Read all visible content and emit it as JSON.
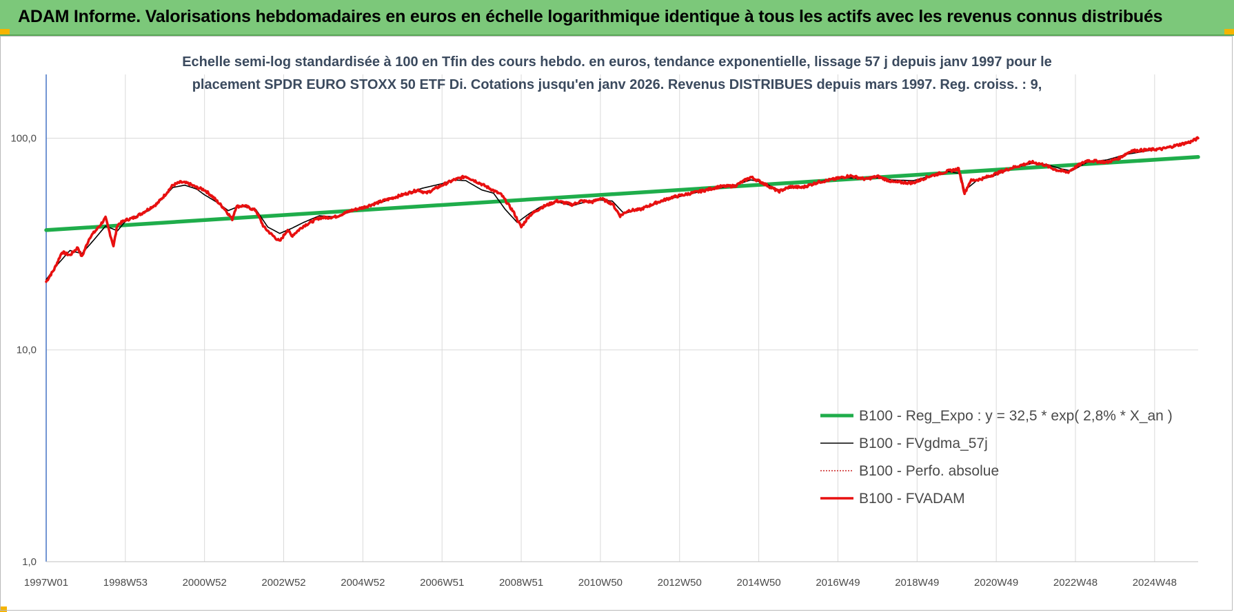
{
  "header": {
    "title": "ADAM Informe. Valorisations hebdomadaires en euros en échelle logarithmique identique à tous les actifs avec les revenus connus distribués"
  },
  "colors": {
    "header_bg": "#7cc87a",
    "accent_corner": "#f5b400",
    "reg_expo": "#1fad4b",
    "fvgdma": "#000000",
    "perfo": "#cc2222",
    "fvadam": "#e81010"
  },
  "chart_data": {
    "type": "line",
    "title_lines": [
      "Echelle semi-log standardisée à 100 en Tfin des cours hebdo. en euros, tendance exponentielle, lissage 57 j depuis janv 1997 pour le",
      "placement SPDR EURO STOXX 50 ETF Di. Cotations jusqu'en janv 2026. Revenus DISTRIBUES depuis mars 1997. Reg. croiss. : 9,"
    ],
    "y_scale": "log",
    "ylim": [
      1,
      200
    ],
    "y_ticks": [
      {
        "value": 1,
        "label": "1,0"
      },
      {
        "value": 10,
        "label": "10,0"
      },
      {
        "value": 100,
        "label": "100,0"
      }
    ],
    "xlim": [
      1997.0,
      2026.1
    ],
    "x_ticks": [
      {
        "value": 1997.0,
        "label": "1997W01"
      },
      {
        "value": 1999.0,
        "label": "1998W53"
      },
      {
        "value": 2001.0,
        "label": "2000W52"
      },
      {
        "value": 2003.0,
        "label": "2002W52"
      },
      {
        "value": 2005.0,
        "label": "2004W52"
      },
      {
        "value": 2007.0,
        "label": "2006W51"
      },
      {
        "value": 2009.0,
        "label": "2008W51"
      },
      {
        "value": 2011.0,
        "label": "2010W50"
      },
      {
        "value": 2013.0,
        "label": "2012W50"
      },
      {
        "value": 2015.0,
        "label": "2014W50"
      },
      {
        "value": 2017.0,
        "label": "2016W49"
      },
      {
        "value": 2019.0,
        "label": "2018W49"
      },
      {
        "value": 2021.0,
        "label": "2020W49"
      },
      {
        "value": 2023.0,
        "label": "2022W48"
      },
      {
        "value": 2025.0,
        "label": "2024W48"
      }
    ],
    "grid": true,
    "legend_position": "bottom-right",
    "series": [
      {
        "name": "B100 - Reg_Expo : y = 32,5 * exp( 2,8% *  X_an )",
        "color": "#1fad4b",
        "style": "solid-thick",
        "x": [
          1997.0,
          2026.1
        ],
        "values": [
          36.8,
          81.5
        ]
      },
      {
        "name": "B100 - FVgdma_57j",
        "color": "#000000",
        "style": "solid",
        "x": [
          1997.0,
          1997.3,
          1997.6,
          1997.9,
          1998.2,
          1998.5,
          1998.8,
          1999.0,
          1999.3,
          1999.6,
          1999.9,
          2000.2,
          2000.5,
          2000.8,
          2001.0,
          2001.3,
          2001.6,
          2001.9,
          2002.3,
          2002.6,
          2002.9,
          2003.2,
          2003.5,
          2003.9,
          2004.3,
          2004.7,
          2005.0,
          2005.5,
          2006.0,
          2006.5,
          2007.0,
          2007.3,
          2007.6,
          2008.0,
          2008.3,
          2008.6,
          2008.9,
          2009.2,
          2009.5,
          2009.9,
          2010.3,
          2010.7,
          2011.0,
          2011.3,
          2011.6,
          2012.0,
          2012.4,
          2012.8,
          2013.2,
          2013.6,
          2014.0,
          2014.4,
          2014.8,
          2015.1,
          2015.5,
          2015.9,
          2016.3,
          2016.7,
          2017.2,
          2017.6,
          2018.0,
          2018.4,
          2018.9,
          2019.3,
          2019.8,
          2020.1,
          2020.2,
          2020.5,
          2020.9,
          2021.4,
          2021.9,
          2022.3,
          2022.6,
          2022.9,
          2023.3,
          2023.8,
          2024.3,
          2024.8,
          2025.3,
          2025.8,
          2026.1
        ],
        "values": [
          21.5,
          25.5,
          29.5,
          28.5,
          33.0,
          38.5,
          36.5,
          40.5,
          43.0,
          45.5,
          51.0,
          58.5,
          60.0,
          57.5,
          54.0,
          50.0,
          45.5,
          48.0,
          46.0,
          38.0,
          35.5,
          37.5,
          40.0,
          43.0,
          42.5,
          45.0,
          47.0,
          50.0,
          54.0,
          58.0,
          61.0,
          63.5,
          63.0,
          57.0,
          55.0,
          46.0,
          40.0,
          44.0,
          47.5,
          50.0,
          48.0,
          50.5,
          51.0,
          50.5,
          44.0,
          46.5,
          49.0,
          52.0,
          54.0,
          56.5,
          58.0,
          60.0,
          63.5,
          62.0,
          57.0,
          58.5,
          60.0,
          63.5,
          65.0,
          64.5,
          65.0,
          63.5,
          63.0,
          66.0,
          69.5,
          68.0,
          56.5,
          63.0,
          66.0,
          72.0,
          76.0,
          75.0,
          72.0,
          70.0,
          77.0,
          79.0,
          84.0,
          87.0,
          90.0,
          95.0,
          99.5
        ]
      },
      {
        "name": "B100 - Perfo. absolue",
        "color": "#cc2222",
        "style": "dotted",
        "x": [],
        "values": []
      },
      {
        "name": "B100 - FVADAM",
        "color": "#e81010",
        "style": "solid-thick",
        "x": [
          1997.0,
          1997.2,
          1997.4,
          1997.6,
          1997.8,
          1997.9,
          1998.1,
          1998.3,
          1998.5,
          1998.6,
          1998.7,
          1998.8,
          1999.0,
          1999.2,
          1999.4,
          1999.6,
          1999.8,
          2000.0,
          2000.2,
          2000.4,
          2000.6,
          2000.8,
          2001.0,
          2001.2,
          2001.5,
          2001.7,
          2001.8,
          2002.0,
          2002.3,
          2002.5,
          2002.7,
          2002.9,
          2003.1,
          2003.2,
          2003.5,
          2003.9,
          2004.3,
          2004.7,
          2005.0,
          2005.5,
          2006.0,
          2006.4,
          2006.6,
          2007.0,
          2007.3,
          2007.6,
          2007.9,
          2008.2,
          2008.5,
          2008.8,
          2009.0,
          2009.2,
          2009.5,
          2009.9,
          2010.3,
          2010.5,
          2010.8,
          2011.0,
          2011.3,
          2011.5,
          2011.7,
          2012.0,
          2012.4,
          2012.8,
          2013.2,
          2013.6,
          2014.0,
          2014.4,
          2014.8,
          2015.1,
          2015.5,
          2015.8,
          2016.1,
          2016.5,
          2016.9,
          2017.3,
          2017.7,
          2018.0,
          2018.4,
          2018.9,
          2019.3,
          2019.8,
          2020.05,
          2020.2,
          2020.35,
          2020.6,
          2020.9,
          2021.4,
          2021.9,
          2022.2,
          2022.5,
          2022.8,
          2023.0,
          2023.3,
          2023.8,
          2024.1,
          2024.4,
          2024.8,
          2025.2,
          2025.6,
          2025.9,
          2026.1
        ],
        "values": [
          21.0,
          24.0,
          29.0,
          28.0,
          30.5,
          27.5,
          34.0,
          37.5,
          42.0,
          36.0,
          31.0,
          39.0,
          41.0,
          42.0,
          44.0,
          46.5,
          49.0,
          54.0,
          60.0,
          62.0,
          61.0,
          58.5,
          57.0,
          53.0,
          46.5,
          41.5,
          47.5,
          48.0,
          45.5,
          38.0,
          35.0,
          32.5,
          37.0,
          34.5,
          38.5,
          42.0,
          42.5,
          45.5,
          47.0,
          50.5,
          54.0,
          57.0,
          55.0,
          60.0,
          63.5,
          66.0,
          62.0,
          58.0,
          54.0,
          45.0,
          38.0,
          43.0,
          47.0,
          50.5,
          48.5,
          50.5,
          50.0,
          52.0,
          49.0,
          43.0,
          45.5,
          46.0,
          49.5,
          52.5,
          54.5,
          56.5,
          59.0,
          59.5,
          65.5,
          61.5,
          56.0,
          59.0,
          58.5,
          62.0,
          64.0,
          66.5,
          64.0,
          66.0,
          62.0,
          61.5,
          66.0,
          70.0,
          71.5,
          55.0,
          63.0,
          64.0,
          67.0,
          72.5,
          77.0,
          75.0,
          71.0,
          69.0,
          73.0,
          78.5,
          77.0,
          80.5,
          87.0,
          88.0,
          89.0,
          93.0,
          96.0,
          100.0
        ]
      }
    ]
  }
}
